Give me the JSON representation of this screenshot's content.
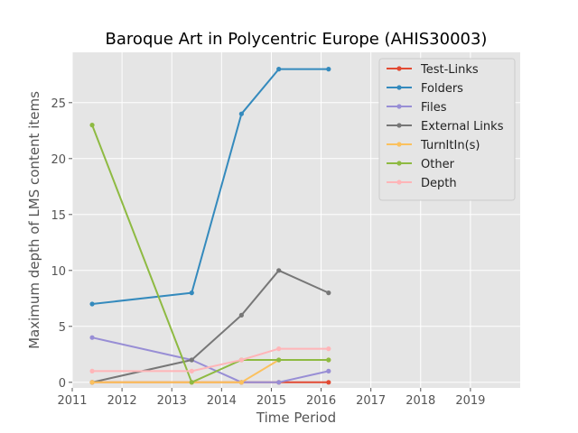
{
  "chart_data": {
    "type": "line",
    "title": "Baroque Art in Polycentric Europe (AHIS30003)",
    "xlabel": "Time Period",
    "ylabel": "Maximum depth of LMS content items",
    "xlim": [
      2011,
      2020
    ],
    "ylim": [
      -0.5,
      29.5
    ],
    "xticks": [
      "2011",
      "2012",
      "2013",
      "2014",
      "2015",
      "2016",
      "2017",
      "2018",
      "2019"
    ],
    "yticks": [
      "0",
      "5",
      "10",
      "15",
      "20",
      "25"
    ],
    "grid": true,
    "legend_position": "top-right",
    "x": [
      2011.4,
      2013.4,
      2014.4,
      2015.15,
      2016.15
    ],
    "series": [
      {
        "name": "Test-Links",
        "color": "#e24a33",
        "values": [
          0,
          0,
          0,
          0,
          0
        ]
      },
      {
        "name": "Folders",
        "color": "#348abd",
        "values": [
          7,
          8,
          24,
          28,
          28
        ]
      },
      {
        "name": "Files",
        "color": "#988ed5",
        "values": [
          4,
          2,
          0,
          0,
          1
        ]
      },
      {
        "name": "External Links",
        "color": "#777777",
        "values": [
          0,
          2,
          6,
          10,
          8
        ]
      },
      {
        "name": "TurnItIn(s)",
        "color": "#fbc15e",
        "values": [
          0,
          0,
          0,
          2,
          2
        ]
      },
      {
        "name": "Other",
        "color": "#8eba42",
        "values": [
          23,
          0,
          2,
          2,
          2
        ]
      },
      {
        "name": "Depth",
        "color": "#ffb5b8",
        "values": [
          1,
          1,
          2,
          3,
          3
        ]
      }
    ]
  }
}
